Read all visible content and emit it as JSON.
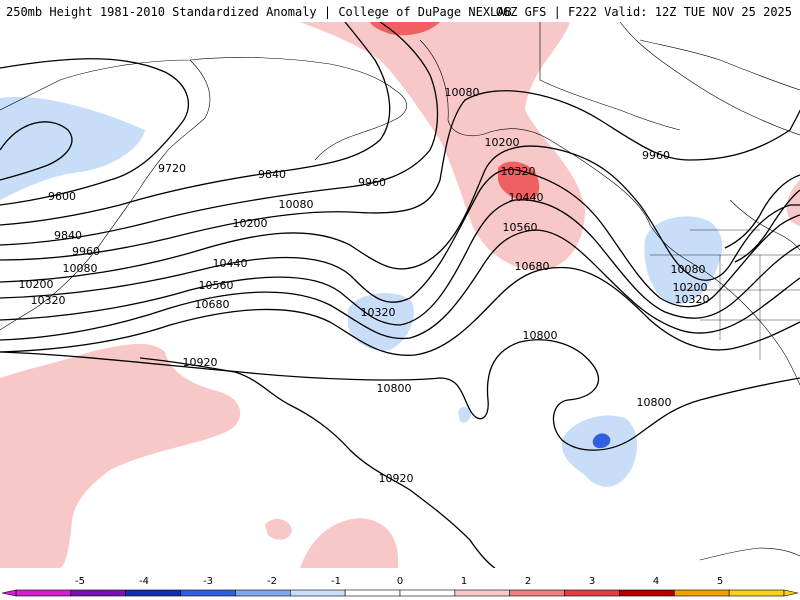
{
  "header": {
    "left_title": "250mb Height 1981-2010 Standardized Anomaly | College of DuPage NEXLAB",
    "right_title": "06Z GFS | F222 Valid: 12Z TUE NOV 25 2025"
  },
  "map": {
    "contour_labels": [
      {
        "name": "contour-label-9600-west",
        "text": "9600"
      },
      {
        "name": "contour-label-9720",
        "text": "9720"
      },
      {
        "name": "contour-label-9840-west",
        "text": "9840"
      },
      {
        "name": "contour-label-9840-center",
        "text": "9840"
      },
      {
        "name": "contour-label-9960-west",
        "text": "9960"
      },
      {
        "name": "contour-label-9960-center",
        "text": "9960"
      },
      {
        "name": "contour-label-9960-east",
        "text": "9960"
      },
      {
        "name": "contour-label-10080-west",
        "text": "10080"
      },
      {
        "name": "contour-label-10080-center",
        "text": "10080"
      },
      {
        "name": "contour-label-10080-alaska",
        "text": "10080"
      },
      {
        "name": "contour-label-10080-east",
        "text": "10080"
      },
      {
        "name": "contour-label-10200-west",
        "text": "10200"
      },
      {
        "name": "contour-label-10200-center",
        "text": "10200"
      },
      {
        "name": "contour-label-10200-alaska",
        "text": "10200"
      },
      {
        "name": "contour-label-10200-east",
        "text": "10200"
      },
      {
        "name": "contour-label-10320-west",
        "text": "10320"
      },
      {
        "name": "contour-label-10320-trough",
        "text": "10320"
      },
      {
        "name": "contour-label-10320-ridge",
        "text": "10320"
      },
      {
        "name": "contour-label-10320-east",
        "text": "10320"
      },
      {
        "name": "contour-label-10440-center",
        "text": "10440"
      },
      {
        "name": "contour-label-10440-ridge",
        "text": "10440"
      },
      {
        "name": "contour-label-10560-center",
        "text": "10560"
      },
      {
        "name": "contour-label-10560-ridge",
        "text": "10560"
      },
      {
        "name": "contour-label-10680-center",
        "text": "10680"
      },
      {
        "name": "contour-label-10680-ridge",
        "text": "10680"
      },
      {
        "name": "contour-label-10800-center",
        "text": "10800"
      },
      {
        "name": "contour-label-10800-low",
        "text": "10800"
      },
      {
        "name": "contour-label-10800-east",
        "text": "10800"
      },
      {
        "name": "contour-label-10920-west",
        "text": "10920"
      },
      {
        "name": "contour-label-10920-center",
        "text": "10920"
      }
    ]
  },
  "colorbar": {
    "ticks": [
      "-5",
      "-4",
      "-3",
      "-2",
      "-1",
      "0",
      "1",
      "2",
      "3",
      "4",
      "5"
    ],
    "colors": [
      "#d020d0",
      "#7b10b8",
      "#1030b0",
      "#3060e0",
      "#80a8f0",
      "#c8ddf8",
      "#ffffff",
      "#ffffff",
      "#f8c8c8",
      "#f08080",
      "#e04040",
      "#b00000",
      "#f0a000",
      "#f8d020"
    ]
  },
  "colors": {
    "blue_fill": "#c8ddf8",
    "pink_fill": "#f8c8c8",
    "red_fill": "#f06060",
    "contour": "#000000",
    "coast": "#000000"
  }
}
